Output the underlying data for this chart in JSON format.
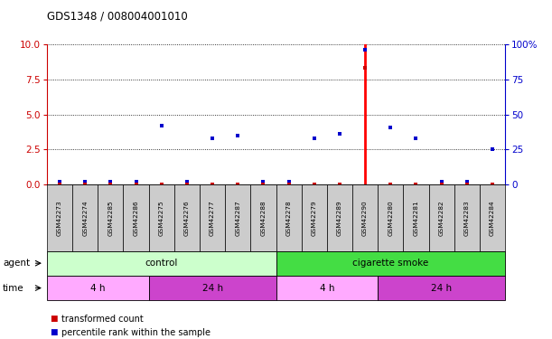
{
  "title": "GDS1348 / 008004001010",
  "samples": [
    "GSM42273",
    "GSM42274",
    "GSM42285",
    "GSM42286",
    "GSM42275",
    "GSM42276",
    "GSM42277",
    "GSM42287",
    "GSM42288",
    "GSM42278",
    "GSM42279",
    "GSM42289",
    "GSM42290",
    "GSM42280",
    "GSM42281",
    "GSM42282",
    "GSM42283",
    "GSM42284"
  ],
  "transformed_count": [
    0.0,
    0.0,
    0.0,
    0.0,
    0.0,
    0.0,
    0.0,
    0.0,
    0.0,
    0.0,
    0.0,
    0.0,
    8.3,
    0.0,
    0.0,
    0.0,
    0.0,
    0.0
  ],
  "percentile_rank": [
    2,
    2,
    2,
    2,
    42,
    2,
    33,
    35,
    2,
    2,
    33,
    36,
    96,
    41,
    33,
    2,
    2,
    25
  ],
  "red_bar_index": 12,
  "ylim_left": [
    0,
    10
  ],
  "ylim_right": [
    0,
    100
  ],
  "yticks_left": [
    0,
    2.5,
    5,
    7.5,
    10
  ],
  "yticks_right": [
    0,
    25,
    50,
    75,
    100
  ],
  "agent_groups": [
    {
      "label": "control",
      "start": 0,
      "end": 8,
      "color": "#ccffcc"
    },
    {
      "label": "cigarette smoke",
      "start": 9,
      "end": 17,
      "color": "#44dd44"
    }
  ],
  "time_groups": [
    {
      "label": "4 h",
      "start": 0,
      "end": 3,
      "color": "#ffaaff"
    },
    {
      "label": "24 h",
      "start": 4,
      "end": 8,
      "color": "#cc44cc"
    },
    {
      "label": "4 h",
      "start": 9,
      "end": 12,
      "color": "#ffaaff"
    },
    {
      "label": "24 h",
      "start": 13,
      "end": 17,
      "color": "#cc44cc"
    }
  ],
  "legend_red": "transformed count",
  "legend_blue": "percentile rank within the sample",
  "agent_label": "agent",
  "time_label": "time",
  "bg_color": "#ffffff",
  "sample_bg": "#cccccc",
  "left_axis_color": "#cc0000",
  "right_axis_color": "#0000cc"
}
